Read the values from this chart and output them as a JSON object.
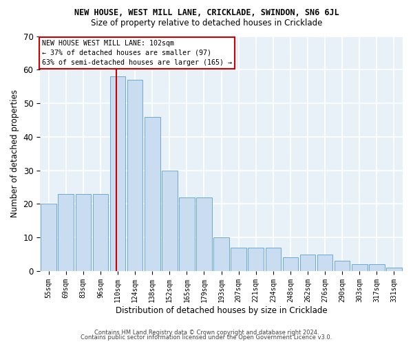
{
  "title": "NEW HOUSE, WEST MILL LANE, CRICKLADE, SWINDON, SN6 6JL",
  "subtitle": "Size of property relative to detached houses in Cricklade",
  "xlabel": "Distribution of detached houses by size in Cricklade",
  "ylabel": "Number of detached properties",
  "categories": [
    "55sqm",
    "69sqm",
    "83sqm",
    "96sqm",
    "110sqm",
    "124sqm",
    "138sqm",
    "152sqm",
    "165sqm",
    "179sqm",
    "193sqm",
    "207sqm",
    "221sqm",
    "234sqm",
    "248sqm",
    "262sqm",
    "276sqm",
    "290sqm",
    "303sqm",
    "317sqm",
    "331sqm"
  ],
  "bar_values": [
    20,
    23,
    23,
    23,
    58,
    57,
    46,
    30,
    22,
    22,
    10,
    7,
    7,
    7,
    4,
    5,
    5,
    3,
    2,
    2,
    1
  ],
  "ylim": [
    0,
    70
  ],
  "bar_color": "#c9dcf0",
  "bar_edgecolor": "#6aaad4",
  "bg_color": "#e8f0f8",
  "grid_color": "#ffffff",
  "vline_color": "#cc0000",
  "annotation_text": "NEW HOUSE WEST MILL LANE: 102sqm\n← 37% of detached houses are smaller (97)\n63% of semi-detached houses are larger (165) →",
  "footer1": "Contains HM Land Registry data © Crown copyright and database right 2024.",
  "footer2": "Contains public sector information licensed under the Open Government Licence v3.0."
}
